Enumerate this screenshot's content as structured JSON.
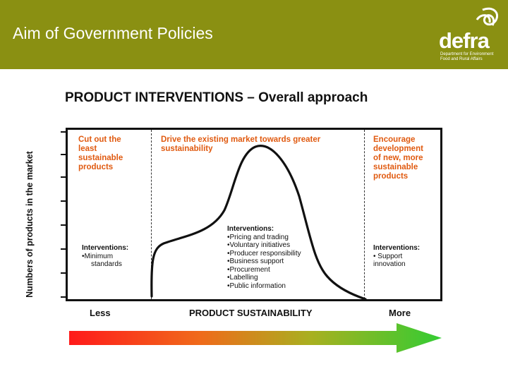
{
  "header": {
    "title": "Aim of Government Policies",
    "bg_color": "#8a9012",
    "logo_text": "defra",
    "logo_subtitle": [
      "Department for Environment",
      "Food and Rural Affairs"
    ]
  },
  "diagram": {
    "title": "PRODUCT INTERVENTIONS – Overall approach",
    "y_axis_label": "Numbers of products in the market",
    "x_axis_label": "PRODUCT SUSTAINABILITY",
    "x_left": "Less",
    "x_right": "More",
    "zones": [
      {
        "heading": [
          "Cut out the",
          "least",
          "sustainable",
          "products"
        ],
        "interventions_heading": "Interventions:",
        "interventions": [
          "•Minimum",
          "standards"
        ]
      },
      {
        "heading": [
          "Drive the existing market towards greater",
          "sustainability"
        ],
        "interventions_heading": "Interventions:",
        "interventions": [
          "•Pricing and trading",
          "•Voluntary initiatives",
          "•Producer responsibility",
          "•Business support",
          "•Procurement",
          "•Labelling",
          "•Public information"
        ]
      },
      {
        "heading": [
          "Encourage",
          "development",
          "of new, more",
          "sustainable",
          "products"
        ],
        "interventions_heading": "Interventions:",
        "interventions": [
          "• Support",
          "innovation"
        ]
      }
    ],
    "zone_text_color": "#e05a10",
    "arrow_gradient": [
      "#ff1a1a",
      "#f06a1a",
      "#a8b020",
      "#33cc33"
    ]
  }
}
